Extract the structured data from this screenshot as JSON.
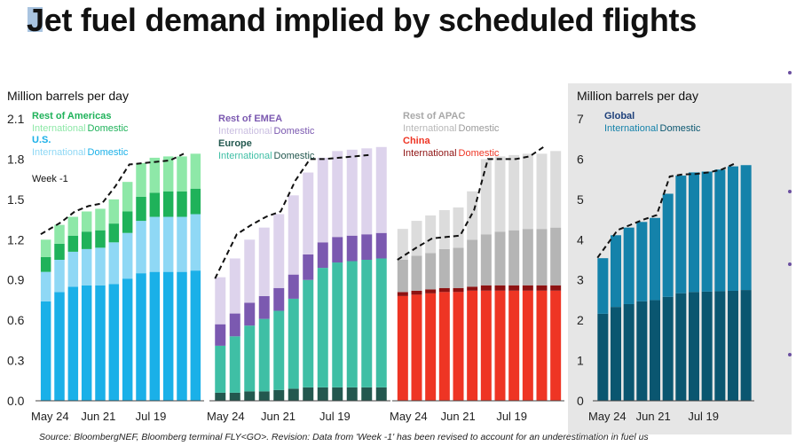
{
  "title": "Jet fuel demand implied by scheduled flights",
  "source": "Source: BloombergNEF, Bloomberg terminal FLY<GO>. Revision: Data from 'Week -1' has been revised to account for an underestimation in fuel us",
  "colors": {
    "accent": "#6b4fa0",
    "americas_intl": "#8ee8a8",
    "americas_dom": "#1fb25a",
    "us_intl": "#8fd8f5",
    "us_dom": "#1ab0e8",
    "emea_intl": "#ddd3ec",
    "emea_dom": "#7b59b0",
    "europe_intl": "#3fbfa5",
    "europe_dom": "#23584f",
    "apac_intl": "#dcdcdc",
    "apac_dom": "#b5b5b5",
    "china_intl": "#8e1212",
    "china_dom": "#ee3524",
    "global_intl": "#1482aa",
    "global_dom": "#0a5670"
  },
  "chart_data": [
    {
      "type": "bar",
      "stacked": true,
      "ylabel": "Million barrels per day",
      "ylim": [
        0,
        2.1
      ],
      "yticks": [
        "0.0",
        "0.3",
        "0.6",
        "0.9",
        "1.2",
        "1.5",
        "1.8",
        "2.1"
      ],
      "xticks": [
        "May 24",
        "Jun 21",
        "Jul 19"
      ],
      "week_minus_1_label": "Week -1",
      "legend": [
        {
          "title": "Rest of Americas",
          "items": [
            "International",
            "Domestic"
          ]
        },
        {
          "title": "U.S.",
          "items": [
            "International",
            "Domestic"
          ]
        }
      ],
      "series": [
        {
          "name": "U.S. Domestic",
          "values": [
            0.74,
            0.81,
            0.85,
            0.86,
            0.86,
            0.87,
            0.91,
            0.95,
            0.96,
            0.96,
            0.96,
            0.97
          ]
        },
        {
          "name": "U.S. International",
          "values": [
            0.22,
            0.24,
            0.26,
            0.27,
            0.28,
            0.31,
            0.34,
            0.39,
            0.41,
            0.41,
            0.41,
            0.42
          ]
        },
        {
          "name": "Rest of Americas Domestic",
          "values": [
            0.11,
            0.12,
            0.12,
            0.13,
            0.13,
            0.14,
            0.16,
            0.18,
            0.18,
            0.19,
            0.19,
            0.19
          ]
        },
        {
          "name": "Rest of Americas International",
          "values": [
            0.13,
            0.14,
            0.14,
            0.15,
            0.16,
            0.18,
            0.22,
            0.25,
            0.26,
            0.26,
            0.26,
            0.26
          ]
        }
      ],
      "week_minus_1": [
        1.24,
        1.33,
        1.41,
        1.45,
        1.47,
        1.6,
        1.76,
        1.77,
        1.78,
        1.79,
        1.84
      ]
    },
    {
      "type": "bar",
      "stacked": true,
      "xticks": [
        "May 24",
        "Jun 21",
        "Jul 19"
      ],
      "legend": [
        {
          "title": "Rest of EMEA",
          "items": [
            "International",
            "Domestic"
          ]
        },
        {
          "title": "Europe",
          "items": [
            "International",
            "Domestic"
          ]
        }
      ],
      "series": [
        {
          "name": "Europe Domestic",
          "values": [
            0.06,
            0.06,
            0.07,
            0.07,
            0.08,
            0.09,
            0.1,
            0.1,
            0.1,
            0.1,
            0.1,
            0.1
          ]
        },
        {
          "name": "Europe International",
          "values": [
            0.35,
            0.42,
            0.49,
            0.54,
            0.59,
            0.67,
            0.8,
            0.89,
            0.93,
            0.94,
            0.95,
            0.96
          ]
        },
        {
          "name": "Rest of EMEA Domestic",
          "values": [
            0.16,
            0.17,
            0.17,
            0.17,
            0.17,
            0.18,
            0.19,
            0.19,
            0.19,
            0.19,
            0.19,
            0.19
          ]
        },
        {
          "name": "Rest of EMEA International",
          "values": [
            0.35,
            0.41,
            0.47,
            0.51,
            0.55,
            0.59,
            0.61,
            0.63,
            0.64,
            0.64,
            0.64,
            0.64
          ]
        }
      ],
      "week_minus_1": [
        0.91,
        1.24,
        1.31,
        1.37,
        1.41,
        1.64,
        1.8,
        1.8,
        1.81,
        1.82,
        1.83
      ]
    },
    {
      "type": "bar",
      "stacked": true,
      "xticks": [
        "May 24",
        "Jun 21",
        "Jul 19"
      ],
      "legend": [
        {
          "title": "Rest of APAC",
          "items": [
            "International",
            "Domestic"
          ]
        },
        {
          "title": "China",
          "items": [
            "International",
            "Domestic"
          ]
        }
      ],
      "series": [
        {
          "name": "China Domestic",
          "values": [
            0.78,
            0.79,
            0.8,
            0.81,
            0.81,
            0.82,
            0.82,
            0.82,
            0.82,
            0.82,
            0.82,
            0.82
          ]
        },
        {
          "name": "China International",
          "values": [
            0.03,
            0.03,
            0.03,
            0.03,
            0.03,
            0.03,
            0.04,
            0.04,
            0.04,
            0.04,
            0.04,
            0.04
          ]
        },
        {
          "name": "Rest of APAC Domestic",
          "values": [
            0.24,
            0.26,
            0.27,
            0.29,
            0.3,
            0.35,
            0.38,
            0.4,
            0.41,
            0.42,
            0.42,
            0.43
          ]
        },
        {
          "name": "Rest of APAC International",
          "values": [
            0.23,
            0.26,
            0.28,
            0.29,
            0.3,
            0.36,
            0.56,
            0.56,
            0.56,
            0.56,
            0.56,
            0.57
          ]
        }
      ],
      "week_minus_1": [
        1.05,
        1.15,
        1.21,
        1.22,
        1.23,
        1.42,
        1.8,
        1.8,
        1.8,
        1.82,
        1.89
      ]
    },
    {
      "type": "bar",
      "stacked": true,
      "ylabel": "Million barrels per day",
      "ylim": [
        0,
        7
      ],
      "yticks": [
        "0",
        "1",
        "2",
        "3",
        "4",
        "5",
        "6",
        "7"
      ],
      "xticks": [
        "May 24",
        "Jun 21",
        "Jul 19"
      ],
      "legend": [
        {
          "title": "Global",
          "items": [
            "International",
            "Domestic"
          ]
        }
      ],
      "series": [
        {
          "name": "Global Domestic",
          "values": [
            2.16,
            2.33,
            2.4,
            2.47,
            2.5,
            2.58,
            2.67,
            2.7,
            2.71,
            2.72,
            2.73,
            2.75
          ]
        },
        {
          "name": "Global International",
          "values": [
            1.38,
            1.78,
            1.9,
            1.97,
            2.04,
            2.56,
            2.92,
            2.97,
            2.98,
            3.02,
            3.09,
            3.1
          ]
        }
      ],
      "week_minus_1": [
        3.55,
        4.24,
        4.37,
        4.5,
        4.61,
        5.57,
        5.62,
        5.63,
        5.67,
        5.74,
        5.89
      ]
    }
  ]
}
